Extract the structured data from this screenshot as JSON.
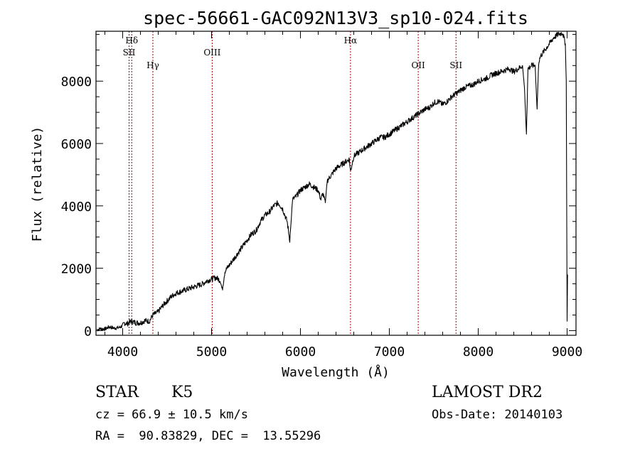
{
  "chart_data": {
    "type": "line",
    "title": "spec-56661-GAC092N13V3_sp10-024.fits",
    "xlabel": "Wavelength (Å)",
    "ylabel": "Flux (relative)",
    "xlim": [
      3700,
      9100
    ],
    "ylim": [
      -150,
      9600
    ],
    "xticks": [
      4000,
      5000,
      6000,
      7000,
      8000,
      9000
    ],
    "yticks": [
      0,
      2000,
      4000,
      6000,
      8000
    ],
    "grid": false,
    "line_color": "#000000",
    "marker_color": "#aa0000",
    "spectral_lines": [
      {
        "label": "Hδ",
        "x": 4102,
        "row": 0
      },
      {
        "label": "SII",
        "x": 4072,
        "row": 1
      },
      {
        "label": "Hγ",
        "x": 4340,
        "row": 2
      },
      {
        "label": "OIII",
        "x": 5007,
        "row": 1
      },
      {
        "label": "Hα",
        "x": 6563,
        "row": 0
      },
      {
        "label": "OII",
        "x": 7325,
        "row": 2
      },
      {
        "label": "SII",
        "x": 7750,
        "row": 2
      }
    ],
    "series": [
      {
        "x": [
          3710,
          3750,
          3800,
          3850,
          3900,
          3950,
          4000,
          4020,
          4050,
          4100,
          4150,
          4200,
          4250,
          4300,
          4340,
          4400,
          4450,
          4500,
          4550,
          4600,
          4650,
          4700,
          4750,
          4800,
          4850,
          4900,
          4950,
          5000,
          5050,
          5100,
          5120,
          5150,
          5200,
          5250,
          5300,
          5350,
          5400,
          5450,
          5500,
          5550,
          5600,
          5650,
          5700,
          5750,
          5800,
          5850,
          5880,
          5893,
          5910,
          5950,
          6000,
          6050,
          6100,
          6150,
          6200,
          6230,
          6250,
          6280,
          6300,
          6350,
          6400,
          6450,
          6500,
          6550,
          6563,
          6600,
          6650,
          6700,
          6750,
          6800,
          6850,
          6900,
          6950,
          7000,
          7050,
          7100,
          7150,
          7200,
          7250,
          7300,
          7350,
          7400,
          7450,
          7500,
          7550,
          7600,
          7650,
          7700,
          7750,
          7800,
          7850,
          7900,
          7950,
          8000,
          8050,
          8100,
          8150,
          8200,
          8250,
          8300,
          8350,
          8400,
          8450,
          8498,
          8520,
          8542,
          8560,
          8600,
          8640,
          8662,
          8680,
          8700,
          8750,
          8800,
          8850,
          8900,
          8950,
          8980,
          8990,
          9000,
          9005
        ],
        "y": [
          30,
          60,
          50,
          120,
          80,
          90,
          150,
          250,
          220,
          300,
          250,
          250,
          320,
          300,
          500,
          600,
          800,
          950,
          1100,
          1200,
          1250,
          1300,
          1350,
          1400,
          1450,
          1500,
          1600,
          1650,
          1700,
          1600,
          1300,
          1900,
          2100,
          2300,
          2500,
          2700,
          2900,
          3100,
          3200,
          3500,
          3700,
          3800,
          4000,
          4100,
          3900,
          3500,
          2900,
          3400,
          4200,
          4300,
          4500,
          4600,
          4700,
          4600,
          4500,
          4200,
          4400,
          4100,
          4800,
          5000,
          5200,
          5300,
          5400,
          5500,
          5100,
          5600,
          5700,
          5800,
          5900,
          6000,
          6100,
          6200,
          6200,
          6300,
          6400,
          6500,
          6600,
          6700,
          6800,
          6900,
          7000,
          7100,
          7150,
          7300,
          7350,
          7250,
          7350,
          7500,
          7600,
          7700,
          7800,
          7850,
          7900,
          8000,
          8050,
          8100,
          8200,
          8250,
          8300,
          8350,
          8400,
          8300,
          8400,
          8500,
          7800,
          6300,
          8400,
          8500,
          8500,
          7100,
          8600,
          8800,
          9000,
          9200,
          9400,
          9500,
          9550,
          9200,
          8000,
          300,
          1800
        ]
      }
    ]
  },
  "info": {
    "class_label": "STAR",
    "subclass": "K5",
    "survey": "LAMOST DR2",
    "velocity": "cz = 66.9 ± 10.5 km/s",
    "obs_date": "Obs-Date: 20140103",
    "coords": "RA =  90.83829, DEC =  13.55296"
  }
}
